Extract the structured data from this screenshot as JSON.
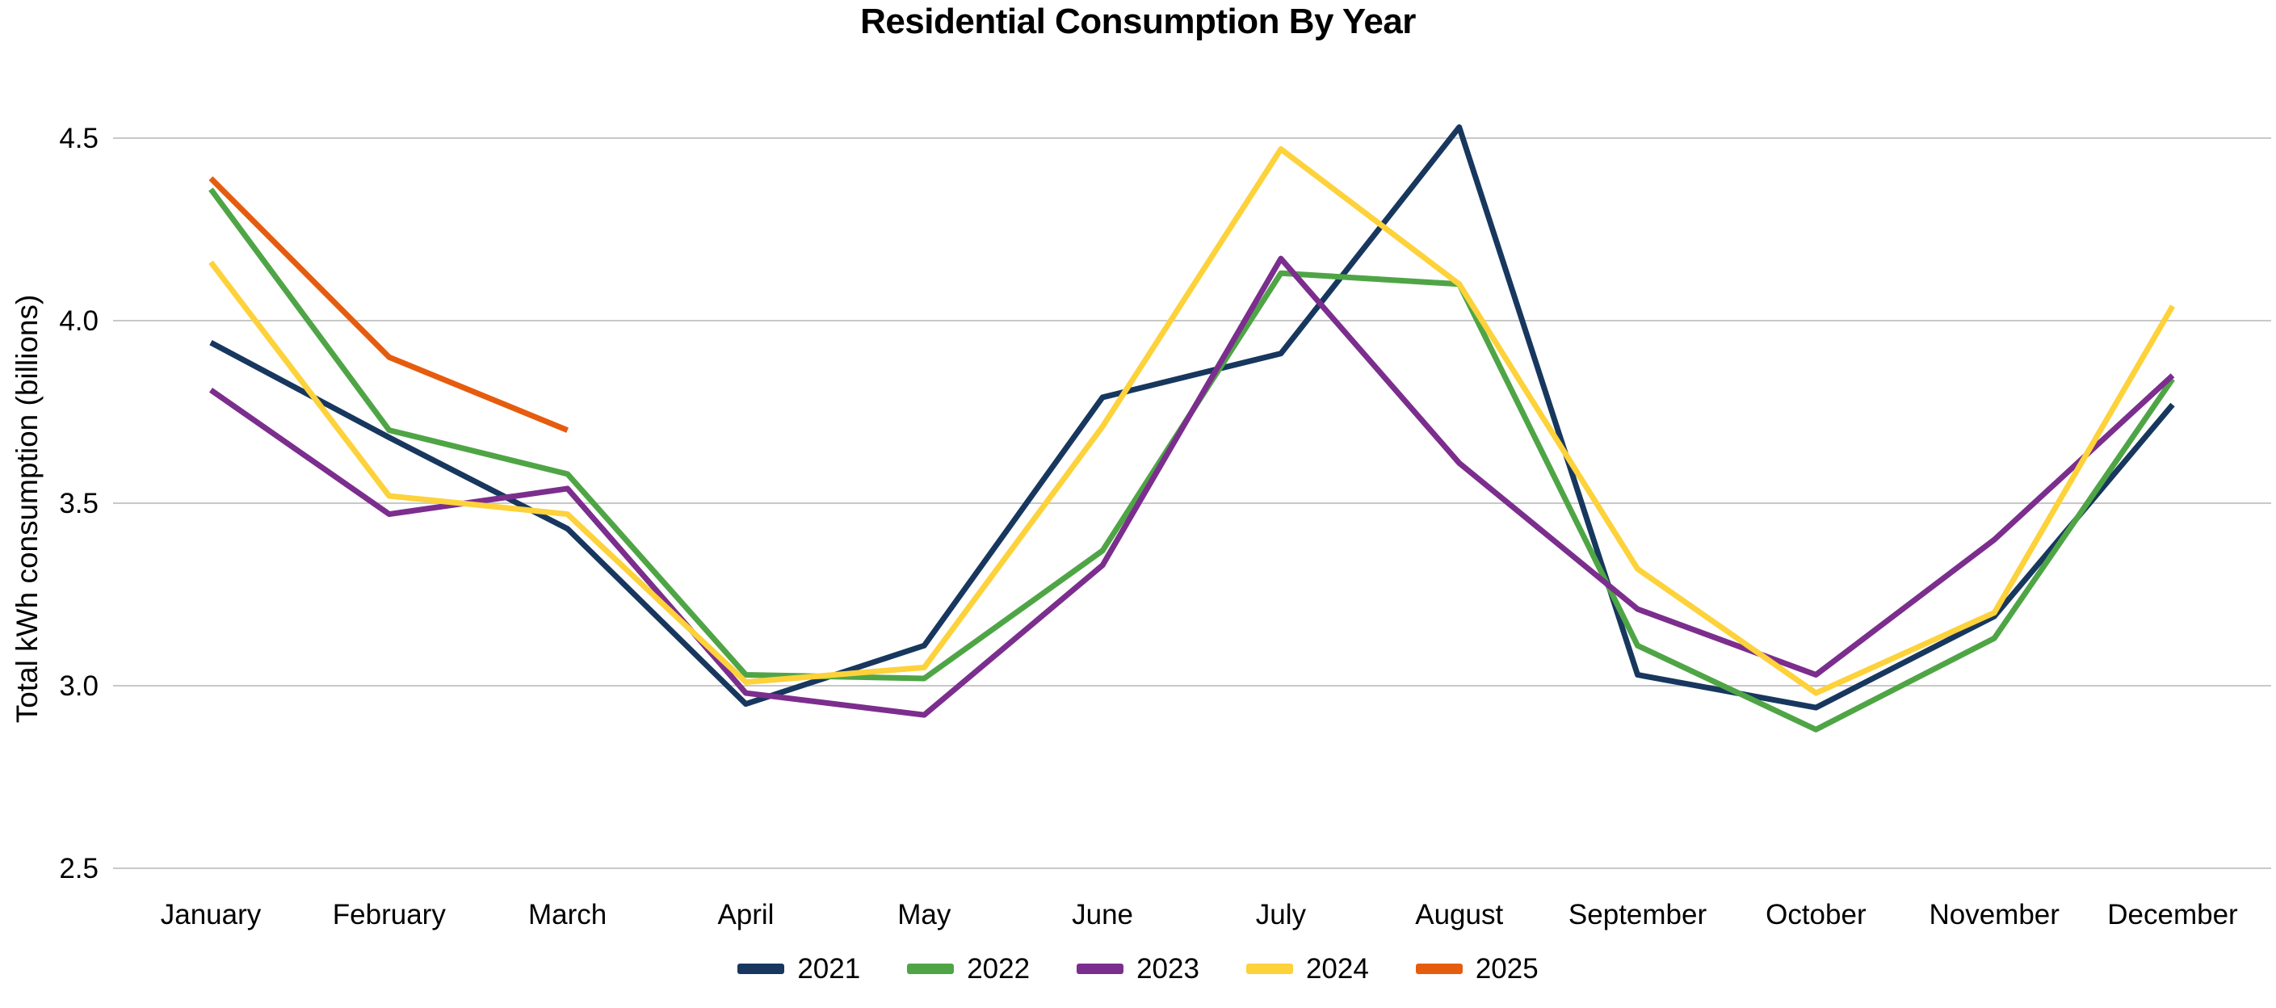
{
  "chart_data": {
    "type": "line",
    "title": "Residential Consumption By Year",
    "ylabel": "Total kWh consumption (billions)",
    "xlabel": "",
    "categories": [
      "January",
      "February",
      "March",
      "April",
      "May",
      "June",
      "July",
      "August",
      "September",
      "October",
      "November",
      "December"
    ],
    "series": [
      {
        "name": "2021",
        "color": "#17375e",
        "values": [
          3.94,
          3.68,
          3.43,
          2.95,
          3.11,
          3.79,
          3.91,
          4.53,
          3.03,
          2.94,
          3.19,
          3.77
        ]
      },
      {
        "name": "2022",
        "color": "#4fa546",
        "values": [
          4.36,
          3.7,
          3.58,
          3.03,
          3.02,
          3.37,
          4.13,
          4.1,
          3.11,
          2.88,
          3.13,
          3.84
        ]
      },
      {
        "name": "2023",
        "color": "#7b2e8d",
        "values": [
          3.81,
          3.47,
          3.54,
          2.98,
          2.92,
          3.33,
          4.17,
          3.61,
          3.21,
          3.03,
          3.4,
          3.85
        ]
      },
      {
        "name": "2024",
        "color": "#fdd23a",
        "values": [
          4.16,
          3.52,
          3.47,
          3.01,
          3.05,
          3.71,
          4.47,
          4.1,
          3.32,
          2.98,
          3.2,
          4.04
        ]
      },
      {
        "name": "2025",
        "color": "#e65c0e",
        "values": [
          4.39,
          3.9,
          3.7,
          null,
          null,
          null,
          null,
          null,
          null,
          null,
          null,
          null
        ]
      }
    ],
    "ylim": [
      2.5,
      4.5
    ],
    "yticks": [
      2.5,
      3.0,
      3.5,
      4.0,
      4.5
    ],
    "ytick_format_decimals": 1,
    "grid": "horizontal",
    "gridline_color": "#c8c8c8",
    "legend_position": "bottom",
    "background": "#ffffff"
  }
}
